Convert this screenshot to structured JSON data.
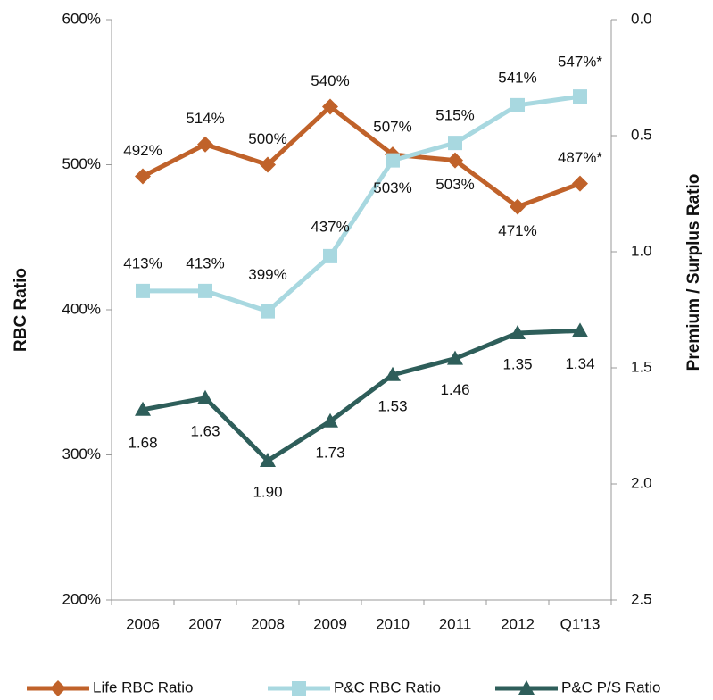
{
  "chart_data": {
    "type": "line",
    "y_axis_label": "RBC Ratio",
    "y2_axis_label": "Premium / Surplus Ratio",
    "categories": [
      "2006",
      "2007",
      "2008",
      "2009",
      "2010",
      "2011",
      "2012",
      "Q1'13"
    ],
    "series": [
      {
        "name": "Life RBC Ratio",
        "color": "#c0622a",
        "marker": "diamond",
        "values": [
          492,
          514,
          500,
          540,
          507,
          503,
          471,
          487
        ],
        "value_labels": [
          "492%",
          "514%",
          "500%",
          "540%",
          "507%",
          "503%",
          "471%",
          "487%*"
        ]
      },
      {
        "name": "P&C RBC Ratio",
        "color": "#a8d8e0",
        "marker": "square",
        "values": [
          413,
          413,
          399,
          437,
          503,
          515,
          541,
          547
        ],
        "value_labels": [
          "413%",
          "413%",
          "399%",
          "437%",
          "503%",
          "515%",
          "541%",
          "547%*"
        ]
      },
      {
        "name": "P&C P/S Ratio",
        "color": "#2e5e5a",
        "marker": "triangle",
        "axis": "y2",
        "values": [
          1.68,
          1.63,
          1.9,
          1.73,
          1.53,
          1.46,
          1.35,
          1.34
        ],
        "value_labels": [
          "1.68",
          "1.63",
          "1.90",
          "1.73",
          "1.53",
          "1.46",
          "1.35",
          "1.34"
        ]
      }
    ],
    "ylim": [
      200,
      600
    ],
    "yticks": [
      {
        "value": 200,
        "label": "200%"
      },
      {
        "value": 300,
        "label": "300%"
      },
      {
        "value": 400,
        "label": "400%"
      },
      {
        "value": 500,
        "label": "500%"
      },
      {
        "value": 600,
        "label": "600%"
      }
    ],
    "y2lim": [
      0,
      2.5
    ],
    "y2_inverted": true,
    "y2ticks": [
      {
        "value": 0,
        "label": "0.0"
      },
      0.5,
      {
        "value": 1,
        "label": "1.0"
      },
      1.5,
      {
        "value": 2,
        "label": "2.0"
      },
      2.5
    ],
    "grid": false,
    "legend": "bottom"
  }
}
